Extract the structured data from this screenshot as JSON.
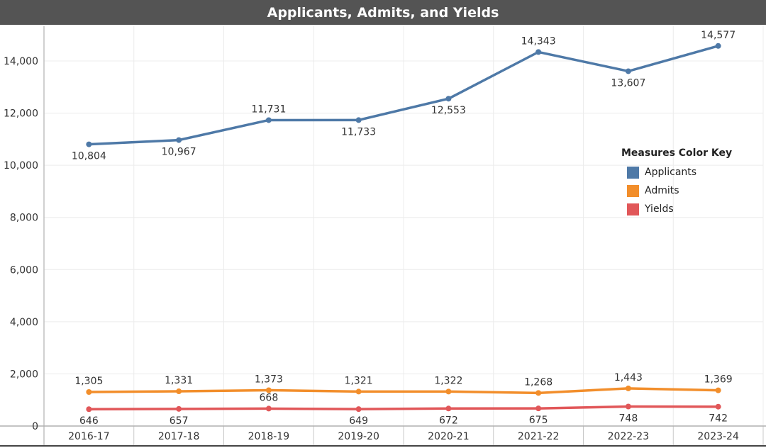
{
  "chart_data": {
    "type": "line",
    "title": "Applicants, Admits, and Yields",
    "categories": [
      "2016-17",
      "2017-18",
      "2018-19",
      "2019-20",
      "2020-21",
      "2021-22",
      "2022-23",
      "2023-24"
    ],
    "ylim": [
      0,
      15400
    ],
    "yticks": [
      0,
      2000,
      4000,
      6000,
      8000,
      10000,
      12000,
      14000
    ],
    "ytick_labels": [
      "0",
      "2,000",
      "4,000",
      "6,000",
      "8,000",
      "10,000",
      "12,000",
      "14,000"
    ],
    "grid": true,
    "legend": {
      "title": "Measures Color Key",
      "placement": "right"
    },
    "series": [
      {
        "name": "Applicants",
        "color": "#4e79a7",
        "values": [
          10804,
          10967,
          11731,
          11733,
          12553,
          14343,
          13607,
          14577
        ],
        "labels": [
          "10,804",
          "10,967",
          "11,731",
          "11,733",
          "12,553",
          "14,343",
          "13,607",
          "14,577"
        ],
        "label_side": [
          "below",
          "below",
          "above",
          "below",
          "below",
          "above",
          "below",
          "above"
        ]
      },
      {
        "name": "Admits",
        "color": "#f28e2b",
        "values": [
          1305,
          1331,
          1373,
          1321,
          1322,
          1268,
          1443,
          1369
        ],
        "labels": [
          "1,305",
          "1,331",
          "1,373",
          "1,321",
          "1,322",
          "1,268",
          "1,443",
          "1,369"
        ],
        "label_side": [
          "above",
          "above",
          "above",
          "above",
          "above",
          "above",
          "above",
          "above"
        ]
      },
      {
        "name": "Yields",
        "color": "#e15759",
        "values": [
          646,
          657,
          668,
          649,
          672,
          675,
          748,
          742
        ],
        "labels": [
          "646",
          "657",
          "668",
          "649",
          "672",
          "675",
          "748",
          "742"
        ],
        "label_side": [
          "below",
          "below",
          "above",
          "below",
          "below",
          "below",
          "below",
          "below"
        ]
      }
    ]
  }
}
